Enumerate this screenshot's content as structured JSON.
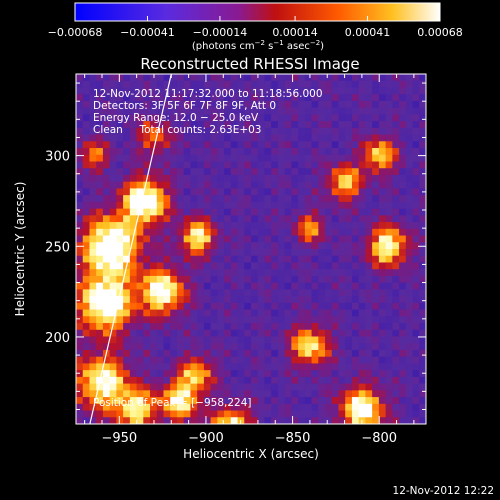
{
  "chart_data": {
    "type": "heatmap",
    "title": "Reconstructed RHESSI Image",
    "xlabel": "Heliocentric X (arcsec)",
    "ylabel": "Heliocentric Y (arcsec)",
    "xlim": [
      -975,
      -773
    ],
    "ylim": [
      152,
      345
    ],
    "x_ticks": [
      -950,
      -900,
      -850,
      -800
    ],
    "x_tick_labels": [
      "−950",
      "−900",
      "−850",
      "−800"
    ],
    "y_ticks": [
      200,
      250,
      300
    ],
    "y_tick_labels": [
      "200",
      "250",
      "300"
    ],
    "colorbar": {
      "range": [
        -0.00068,
        0.00068
      ],
      "ticks": [
        -0.00068,
        -0.00041,
        -0.00014,
        0.00014,
        0.00041,
        0.00068
      ],
      "tick_labels": [
        "−0.00068",
        "−0.00041",
        "−0.00014",
        "0.00014",
        "0.00041",
        "0.00068"
      ],
      "unit_parts": [
        "(photons cm",
        "−2",
        " s",
        "−1",
        " asec",
        "−2",
        ")"
      ]
    },
    "annotations": [
      "12-Nov-2012 11:17:32.000 to 11:18:56.000",
      "Detectors: 3F 5F 6F 7F 8F 9F, Att 0",
      "Energy Range: 12.0 − 25.0 keV",
      "Clean     Total counts: 2.63E+03"
    ],
    "peak_text": "Position of Peak = [−958,224]",
    "peak": [
      -958,
      224
    ],
    "limb_line": [
      [
        -967,
        152
      ],
      [
        -920,
        345
      ]
    ],
    "sources": [
      {
        "x": -955,
        "y": 250,
        "amp": 1.0,
        "sigma": 12
      },
      {
        "x": -935,
        "y": 275,
        "amp": 1.0,
        "sigma": 9
      },
      {
        "x": -958,
        "y": 218,
        "amp": 1.0,
        "sigma": 11
      },
      {
        "x": -925,
        "y": 225,
        "amp": 0.9,
        "sigma": 9
      },
      {
        "x": -960,
        "y": 175,
        "amp": 0.85,
        "sigma": 11
      },
      {
        "x": -940,
        "y": 160,
        "amp": 0.75,
        "sigma": 8
      },
      {
        "x": -915,
        "y": 165,
        "amp": 0.8,
        "sigma": 8
      },
      {
        "x": -905,
        "y": 255,
        "amp": 0.8,
        "sigma": 7
      },
      {
        "x": -885,
        "y": 150,
        "amp": 0.85,
        "sigma": 8
      },
      {
        "x": -905,
        "y": 180,
        "amp": 0.6,
        "sigma": 7
      },
      {
        "x": -810,
        "y": 160,
        "amp": 0.9,
        "sigma": 9
      },
      {
        "x": -840,
        "y": 195,
        "amp": 0.75,
        "sigma": 8
      },
      {
        "x": -795,
        "y": 250,
        "amp": 0.85,
        "sigma": 8
      },
      {
        "x": -820,
        "y": 285,
        "amp": 0.7,
        "sigma": 7
      },
      {
        "x": -800,
        "y": 300,
        "amp": 0.7,
        "sigma": 7
      },
      {
        "x": -840,
        "y": 260,
        "amp": 0.55,
        "sigma": 6
      },
      {
        "x": -930,
        "y": 310,
        "amp": 0.5,
        "sigma": 7
      },
      {
        "x": -965,
        "y": 300,
        "amp": 0.55,
        "sigma": 6
      }
    ]
  },
  "footer": {
    "timestamp": "12-Nov-2012 12:22"
  },
  "colors": {
    "background": "#000000",
    "text": "#ffffff",
    "plot_base": "#5a2aa0"
  }
}
